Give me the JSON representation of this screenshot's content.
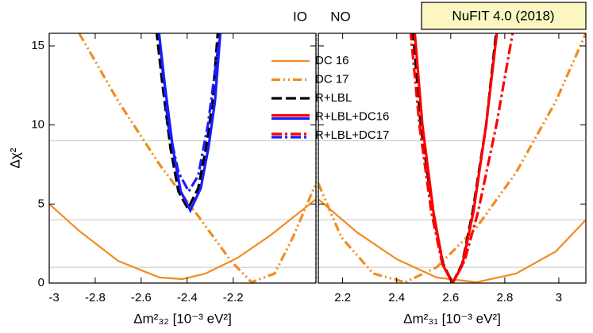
{
  "banner": "NuFIT 4.0 (2018)",
  "chart_data": [
    {
      "type": "line",
      "label": "IO",
      "xlabel": "Δm²₃₂ [10⁻³ eV²]",
      "ylabel": "Δχ²",
      "xlim": [
        -3,
        -1.84
      ],
      "xticks": [
        -3,
        -2.8,
        -2.6,
        -2.4,
        -2.2
      ],
      "ylim": [
        0,
        15.8
      ],
      "yticks": [
        0,
        5,
        10,
        15
      ],
      "hlines": [
        1,
        4,
        9
      ],
      "series": [
        {
          "name": "DC 16",
          "color": "#f28c1e",
          "line_style": "solid",
          "x": [
            -3,
            -2.87,
            -2.7,
            -2.52,
            -2.42,
            -2.32,
            -2.18,
            -2.04,
            -1.84
          ],
          "values": [
            5.0,
            3.3,
            1.4,
            0.35,
            0.25,
            0.6,
            1.6,
            3.0,
            5.3
          ]
        },
        {
          "name": "DC 17",
          "color": "#f28c1e",
          "line_style": "dashdotdot",
          "x": [
            -2.87,
            -2.7,
            -2.52,
            -2.35,
            -2.21,
            -2.12,
            -2.02,
            -1.94,
            -1.84
          ],
          "values": [
            15.8,
            11.5,
            7.5,
            4.2,
            1.4,
            0.05,
            0.6,
            2.9,
            6.3
          ]
        },
        {
          "name": "R+LBL",
          "color": "#000000",
          "line_style": "dashed",
          "x": [
            -2.534,
            -2.507,
            -2.472,
            -2.438,
            -2.397,
            -2.352,
            -2.317,
            -2.29,
            -2.266
          ],
          "values": [
            16,
            12.5,
            8.5,
            5.8,
            4.7,
            6.0,
            8.6,
            11.5,
            16
          ]
        },
        {
          "name": "R+LBL+DC16",
          "color": "#1a1aff",
          "line_style": "solid",
          "x": [
            -2.524,
            -2.497,
            -2.462,
            -2.428,
            -2.386,
            -2.341,
            -2.307,
            -2.279,
            -2.255
          ],
          "values": [
            16,
            12.5,
            8.5,
            5.8,
            4.6,
            6.0,
            8.6,
            11.5,
            16
          ]
        },
        {
          "name": "R+LBL+DC17",
          "color": "#1a1aff",
          "line_style": "dashdot",
          "x": [
            -2.524,
            -2.483,
            -2.438,
            -2.393,
            -2.352,
            -2.31,
            -2.255
          ],
          "values": [
            16,
            10,
            7,
            5.8,
            6.8,
            10,
            16
          ]
        }
      ]
    },
    {
      "type": "line",
      "label": "NO",
      "xlabel": "Δm²₃₁ [10⁻³ eV²]",
      "xlim": [
        2.11,
        3.1
      ],
      "xticks": [
        2.2,
        2.4,
        2.6,
        2.8,
        3
      ],
      "ylim": [
        0,
        15.8
      ],
      "yticks": [
        0,
        5,
        10,
        15
      ],
      "hlines": [
        1,
        4,
        9
      ],
      "series": [
        {
          "color": "#f28c1e",
          "line_style": "solid",
          "x": [
            2.11,
            2.254,
            2.401,
            2.548,
            2.695,
            2.842,
            2.989,
            3.1
          ],
          "values": [
            5.3,
            3.2,
            1.5,
            0.35,
            0.05,
            0.6,
            2.0,
            4.0
          ]
        },
        {
          "color": "#f28c1e",
          "line_style": "dashdotdot",
          "x": [
            2.11,
            2.195,
            2.313,
            2.431,
            2.548,
            2.695,
            2.842,
            2.989,
            3.1
          ],
          "values": [
            6.3,
            2.9,
            0.6,
            0.05,
            1.0,
            3.5,
            7.0,
            11.5,
            15.8
          ]
        },
        {
          "color": "#000000",
          "line_style": "dashed",
          "x": [
            2.46,
            2.489,
            2.534,
            2.572,
            2.607,
            2.642,
            2.681,
            2.731,
            2.769
          ],
          "values": [
            16,
            10,
            4.5,
            1.2,
            0,
            1.2,
            4.5,
            10,
            16
          ]
        },
        {
          "color": "#ff0000",
          "line_style": "solid",
          "x": [
            2.466,
            2.495,
            2.536,
            2.572,
            2.607,
            2.642,
            2.684,
            2.731,
            2.772
          ],
          "values": [
            16,
            10,
            4.5,
            1.1,
            0,
            1.1,
            4.5,
            10,
            16
          ]
        },
        {
          "color": "#ff0000",
          "line_style": "dashdot",
          "x": [
            2.451,
            2.484,
            2.528,
            2.569,
            2.607,
            2.651,
            2.701,
            2.769,
            2.831
          ],
          "values": [
            16,
            10,
            4.5,
            1.2,
            0,
            1.4,
            4.5,
            10,
            16
          ]
        }
      ]
    }
  ]
}
